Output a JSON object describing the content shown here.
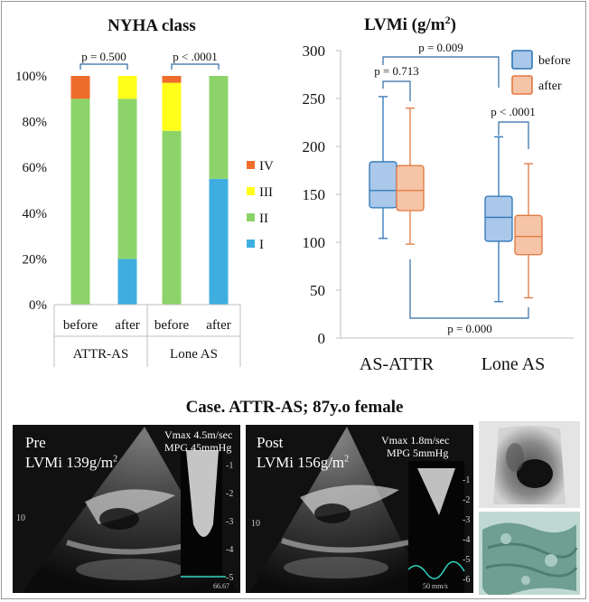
{
  "chart_data": [
    {
      "type": "bar",
      "stacked": true,
      "title": "NYHA class",
      "categories": [
        "before",
        "after",
        "before",
        "after"
      ],
      "groups": [
        "ATTR-AS",
        "Lone AS"
      ],
      "y_ticks": [
        "0%",
        "20%",
        "40%",
        "60%",
        "80%",
        "100%"
      ],
      "ylim": [
        0,
        100
      ],
      "series": [
        {
          "name": "I",
          "color": "#3eaee0",
          "values": [
            0,
            20,
            0,
            55
          ]
        },
        {
          "name": "II",
          "color": "#8cd46a",
          "values": [
            90,
            70,
            76,
            45
          ]
        },
        {
          "name": "III",
          "color": "#ffff1a",
          "values": [
            0,
            10,
            21,
            0
          ]
        },
        {
          "name": "IV",
          "color": "#ee6d2c",
          "values": [
            10,
            0,
            3,
            0
          ]
        }
      ],
      "legend_order": [
        "IV",
        "III",
        "II",
        "I"
      ],
      "annotations": [
        "p = 0.500",
        "p < .0001"
      ]
    },
    {
      "type": "box",
      "title_main": "LVMi (g/m",
      "title_sup": "2",
      "title_end": ")",
      "ylim": [
        0,
        300
      ],
      "y_ticks": [
        "0",
        "50",
        "100",
        "150",
        "200",
        "250",
        "300"
      ],
      "categories": [
        "AS-ATTR",
        "Lone AS"
      ],
      "series": [
        {
          "name": "before",
          "fill": "#a9c8ea",
          "stroke": "#2e75b6",
          "boxes": [
            {
              "min": 104,
              "q1": 136,
              "median": 154,
              "q3": 184,
              "max": 252
            },
            {
              "min": 38,
              "q1": 101,
              "median": 126,
              "q3": 148,
              "max": 210
            }
          ]
        },
        {
          "name": "after",
          "fill": "#f6c4a6",
          "stroke": "#e07840",
          "boxes": [
            {
              "min": 98,
              "q1": 133,
              "median": 154,
              "q3": 180,
              "max": 240
            },
            {
              "min": 42,
              "q1": 87,
              "median": 106,
              "q3": 128,
              "max": 182
            }
          ]
        }
      ],
      "annotations": [
        "p = 0.009",
        "p = 0.713",
        "p < .0001",
        "p = 0.000"
      ]
    }
  ],
  "case": {
    "title": "Case. ATTR-AS; 87y.o female",
    "pre": {
      "label": "Pre",
      "lvmi_prefix": "LVMi 139g/m",
      "sup": "2",
      "vmax": "Vmax 4.5m/sec",
      "mpg": "MPG 45mmHg",
      "scale_marks": [
        "-1",
        "-2",
        "-3",
        "-4",
        "-5"
      ],
      "depth_mark": "10",
      "corner_text": "66.67"
    },
    "post": {
      "label": "Post",
      "lvmi_prefix": "LVMi 156g/m",
      "sup": "2",
      "vmax": "Vmax 1.8m/sec",
      "mpg": "MPG 5mmHg",
      "scale_marks": [
        "-1",
        "-2",
        "-3",
        "-4",
        "-5",
        "-6"
      ],
      "depth_mark": "10",
      "corner_text": "50 mm/s"
    }
  }
}
